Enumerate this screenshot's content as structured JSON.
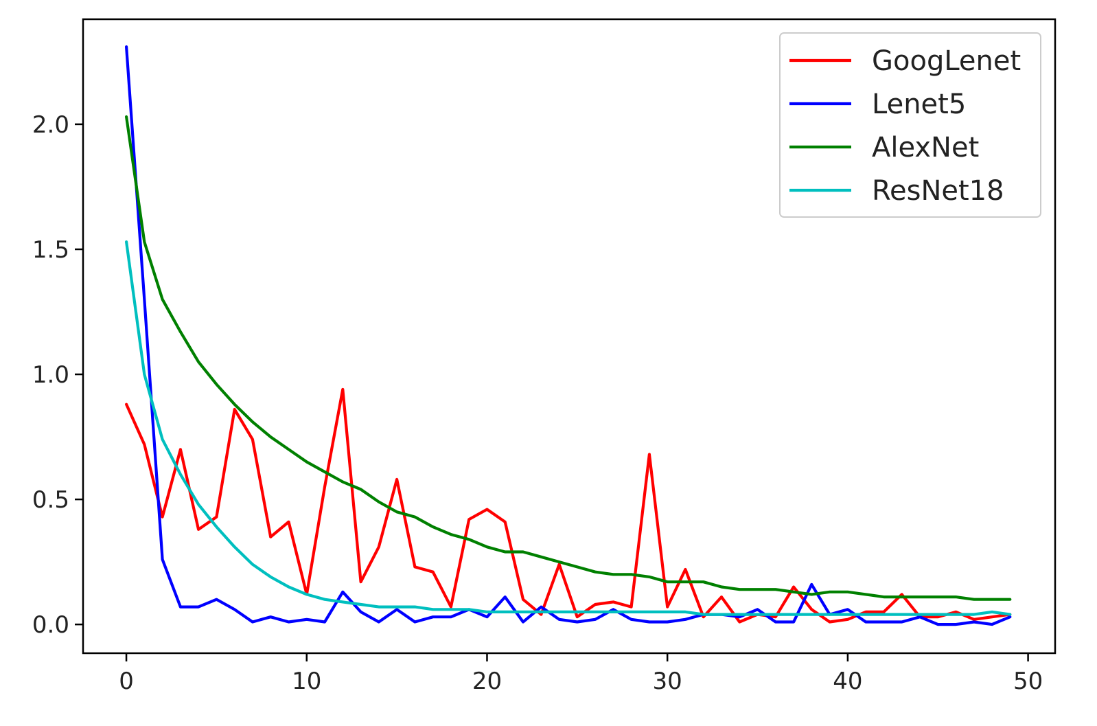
{
  "chart_data": {
    "type": "line",
    "title": "",
    "xlabel": "",
    "ylabel": "",
    "xlim": [
      -2.4,
      51.5
    ],
    "ylim": [
      -0.115,
      2.42
    ],
    "xticks": [
      0,
      10,
      20,
      30,
      40,
      50
    ],
    "yticks": [
      0.0,
      0.5,
      1.0,
      1.5,
      2.0
    ],
    "xtick_labels": [
      "0",
      "10",
      "20",
      "30",
      "40",
      "50"
    ],
    "ytick_labels": [
      "0.0",
      "0.5",
      "1.0",
      "1.5",
      "2.0"
    ],
    "grid": false,
    "legend_position": "top-right",
    "x": [
      0,
      1,
      2,
      3,
      4,
      5,
      6,
      7,
      8,
      9,
      10,
      11,
      12,
      13,
      14,
      15,
      16,
      17,
      18,
      19,
      20,
      21,
      22,
      23,
      24,
      25,
      26,
      27,
      28,
      29,
      30,
      31,
      32,
      33,
      34,
      35,
      36,
      37,
      38,
      39,
      40,
      41,
      42,
      43,
      44,
      45,
      46,
      47,
      48,
      49
    ],
    "series": [
      {
        "name": "GoogLenet",
        "color": "#ff0000",
        "values": [
          0.88,
          0.72,
          0.43,
          0.7,
          0.38,
          0.43,
          0.86,
          0.74,
          0.35,
          0.41,
          0.12,
          0.55,
          0.94,
          0.17,
          0.31,
          0.58,
          0.23,
          0.21,
          0.07,
          0.42,
          0.46,
          0.41,
          0.1,
          0.04,
          0.24,
          0.03,
          0.08,
          0.09,
          0.07,
          0.68,
          0.07,
          0.22,
          0.03,
          0.11,
          0.01,
          0.04,
          0.03,
          0.15,
          0.06,
          0.01,
          0.02,
          0.05,
          0.05,
          0.12,
          0.03,
          0.03,
          0.05,
          0.02,
          0.03,
          0.04
        ]
      },
      {
        "name": "Lenet5",
        "color": "#0000ff",
        "values": [
          2.31,
          1.3,
          0.26,
          0.07,
          0.07,
          0.1,
          0.06,
          0.01,
          0.03,
          0.01,
          0.02,
          0.01,
          0.13,
          0.05,
          0.01,
          0.06,
          0.01,
          0.03,
          0.03,
          0.06,
          0.03,
          0.11,
          0.01,
          0.07,
          0.02,
          0.01,
          0.02,
          0.06,
          0.02,
          0.01,
          0.01,
          0.02,
          0.04,
          0.04,
          0.03,
          0.06,
          0.01,
          0.01,
          0.16,
          0.04,
          0.06,
          0.01,
          0.01,
          0.01,
          0.03,
          0.0,
          0.0,
          0.01,
          0.0,
          0.03
        ]
      },
      {
        "name": "AlexNet",
        "color": "#008000",
        "values": [
          2.03,
          1.53,
          1.3,
          1.17,
          1.05,
          0.96,
          0.88,
          0.81,
          0.75,
          0.7,
          0.65,
          0.61,
          0.57,
          0.54,
          0.49,
          0.45,
          0.43,
          0.39,
          0.36,
          0.34,
          0.31,
          0.29,
          0.29,
          0.27,
          0.25,
          0.23,
          0.21,
          0.2,
          0.2,
          0.19,
          0.17,
          0.17,
          0.17,
          0.15,
          0.14,
          0.14,
          0.14,
          0.13,
          0.12,
          0.13,
          0.13,
          0.12,
          0.11,
          0.11,
          0.11,
          0.11,
          0.11,
          0.1,
          0.1,
          0.1
        ]
      },
      {
        "name": "ResNet18",
        "color": "#00bfbf",
        "values": [
          1.53,
          1.0,
          0.74,
          0.6,
          0.48,
          0.39,
          0.31,
          0.24,
          0.19,
          0.15,
          0.12,
          0.1,
          0.09,
          0.08,
          0.07,
          0.07,
          0.07,
          0.06,
          0.06,
          0.06,
          0.05,
          0.05,
          0.05,
          0.05,
          0.05,
          0.05,
          0.05,
          0.05,
          0.05,
          0.05,
          0.05,
          0.05,
          0.04,
          0.04,
          0.04,
          0.04,
          0.04,
          0.04,
          0.04,
          0.04,
          0.04,
          0.04,
          0.04,
          0.04,
          0.04,
          0.04,
          0.04,
          0.04,
          0.05,
          0.04
        ]
      }
    ]
  }
}
